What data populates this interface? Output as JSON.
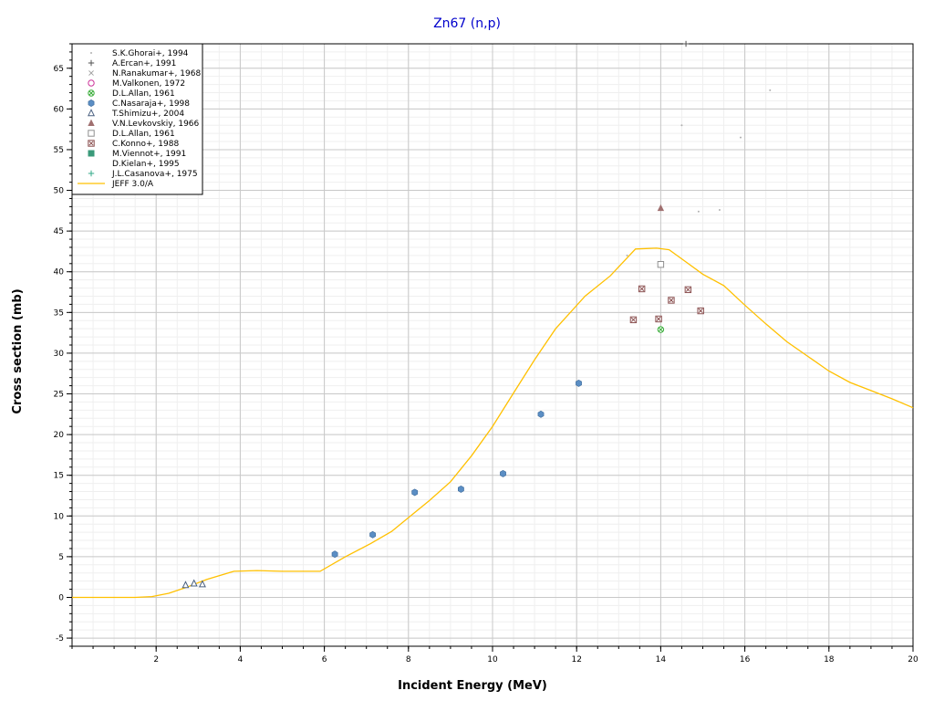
{
  "chart_data": {
    "type": "scatter",
    "title": "Zn67 (n,p)",
    "xlabel": "Incident Energy (MeV)",
    "ylabel": "Cross section (mb)",
    "xlim": [
      0,
      20
    ],
    "ylim": [
      -6,
      68
    ],
    "x_ticks": [
      2,
      4,
      6,
      8,
      10,
      12,
      14,
      16,
      18,
      20
    ],
    "y_ticks": [
      -5,
      0,
      5,
      10,
      15,
      20,
      25,
      30,
      35,
      40,
      45,
      50,
      55,
      60,
      65
    ],
    "grid": true,
    "legend_position": "top-left",
    "series": [
      {
        "name": "S.K.Ghorai+, 1994",
        "marker": "dot",
        "color": "#b0b0b0",
        "points": [
          [
            13.2,
            42
          ],
          [
            14.5,
            58
          ],
          [
            15.9,
            56.5
          ],
          [
            16.6,
            62.3
          ],
          [
            14.9,
            47.4
          ],
          [
            15.4,
            47.6
          ]
        ]
      },
      {
        "name": "A.Ercan+, 1991",
        "marker": "plus",
        "color": "#505050",
        "points": [
          [
            14.6,
            68
          ]
        ]
      },
      {
        "name": "N.Ranakumar+, 1968",
        "marker": "x",
        "color": "#a0a0a0",
        "points": []
      },
      {
        "name": "M.Valkonen, 1972",
        "marker": "circle-open",
        "color": "#cc3399",
        "points": []
      },
      {
        "name": "D.L.Allan, 1961",
        "marker": "circle-x",
        "color": "#33aa33",
        "points": [
          [
            14.0,
            32.9
          ]
        ]
      },
      {
        "name": "C.Nasaraja+, 1998",
        "marker": "hexagon",
        "color": "#5b8ec4",
        "points": [
          [
            6.25,
            5.3
          ],
          [
            7.15,
            7.7
          ],
          [
            8.15,
            12.9
          ],
          [
            9.25,
            13.3
          ],
          [
            10.25,
            15.2
          ],
          [
            11.15,
            22.5
          ],
          [
            12.05,
            26.3
          ]
        ]
      },
      {
        "name": "T.Shimizu+, 2004",
        "marker": "triangle-open",
        "color": "#4a6080",
        "points": [
          [
            2.7,
            1.5
          ],
          [
            2.9,
            1.7
          ],
          [
            3.1,
            1.6
          ]
        ]
      },
      {
        "name": "V.N.Levkovskiy, 1966",
        "marker": "triangle",
        "color": "#a07070",
        "points": [
          [
            14.0,
            47.8
          ]
        ]
      },
      {
        "name": "D.L.Allan, 1961",
        "marker": "square-open",
        "color": "#909090",
        "points": [
          [
            14.0,
            40.9
          ]
        ]
      },
      {
        "name": "C.Konno+, 1988",
        "marker": "square-x",
        "color": "#8a5050",
        "points": [
          [
            13.35,
            34.1
          ],
          [
            13.55,
            37.9
          ],
          [
            13.95,
            34.2
          ],
          [
            14.25,
            36.5
          ],
          [
            14.65,
            37.8
          ],
          [
            14.95,
            35.2
          ]
        ]
      },
      {
        "name": "M.Viennot+, 1991",
        "marker": "square",
        "color": "#3a9a7a",
        "points": []
      },
      {
        "name": "D.Kielan+, 1995",
        "marker": "none",
        "color": "#000000",
        "points": []
      },
      {
        "name": "J.L.Casanova+, 1975",
        "marker": "plus",
        "color": "#33aa88",
        "points": []
      }
    ],
    "curve": {
      "name": "JEFF 3.0/A",
      "color": "#ffc000",
      "x": [
        0,
        1.5,
        1.9,
        2.3,
        2.7,
        3.2,
        3.85,
        4.4,
        5.0,
        5.5,
        5.9,
        6.5,
        7.1,
        7.6,
        8.0,
        8.5,
        9.0,
        9.5,
        10.0,
        10.5,
        11.0,
        11.5,
        12.2,
        12.8,
        13.4,
        13.9,
        14.2,
        14.6,
        15.0,
        15.5,
        16.0,
        16.5,
        17.0,
        17.5,
        18.0,
        18.5,
        19.0,
        19.5,
        20.0
      ],
      "y": [
        0,
        0,
        0.1,
        0.5,
        1.2,
        2.2,
        3.2,
        3.3,
        3.2,
        3.2,
        3.2,
        5.0,
        6.6,
        8.1,
        9.8,
        11.9,
        14.2,
        17.4,
        21.0,
        25.1,
        29.2,
        33.0,
        37.0,
        39.5,
        42.8,
        42.9,
        42.7,
        41.2,
        39.7,
        38.3,
        35.9,
        33.6,
        31.4,
        29.6,
        27.8,
        26.4,
        25.4,
        24.4,
        23.3
      ]
    }
  }
}
